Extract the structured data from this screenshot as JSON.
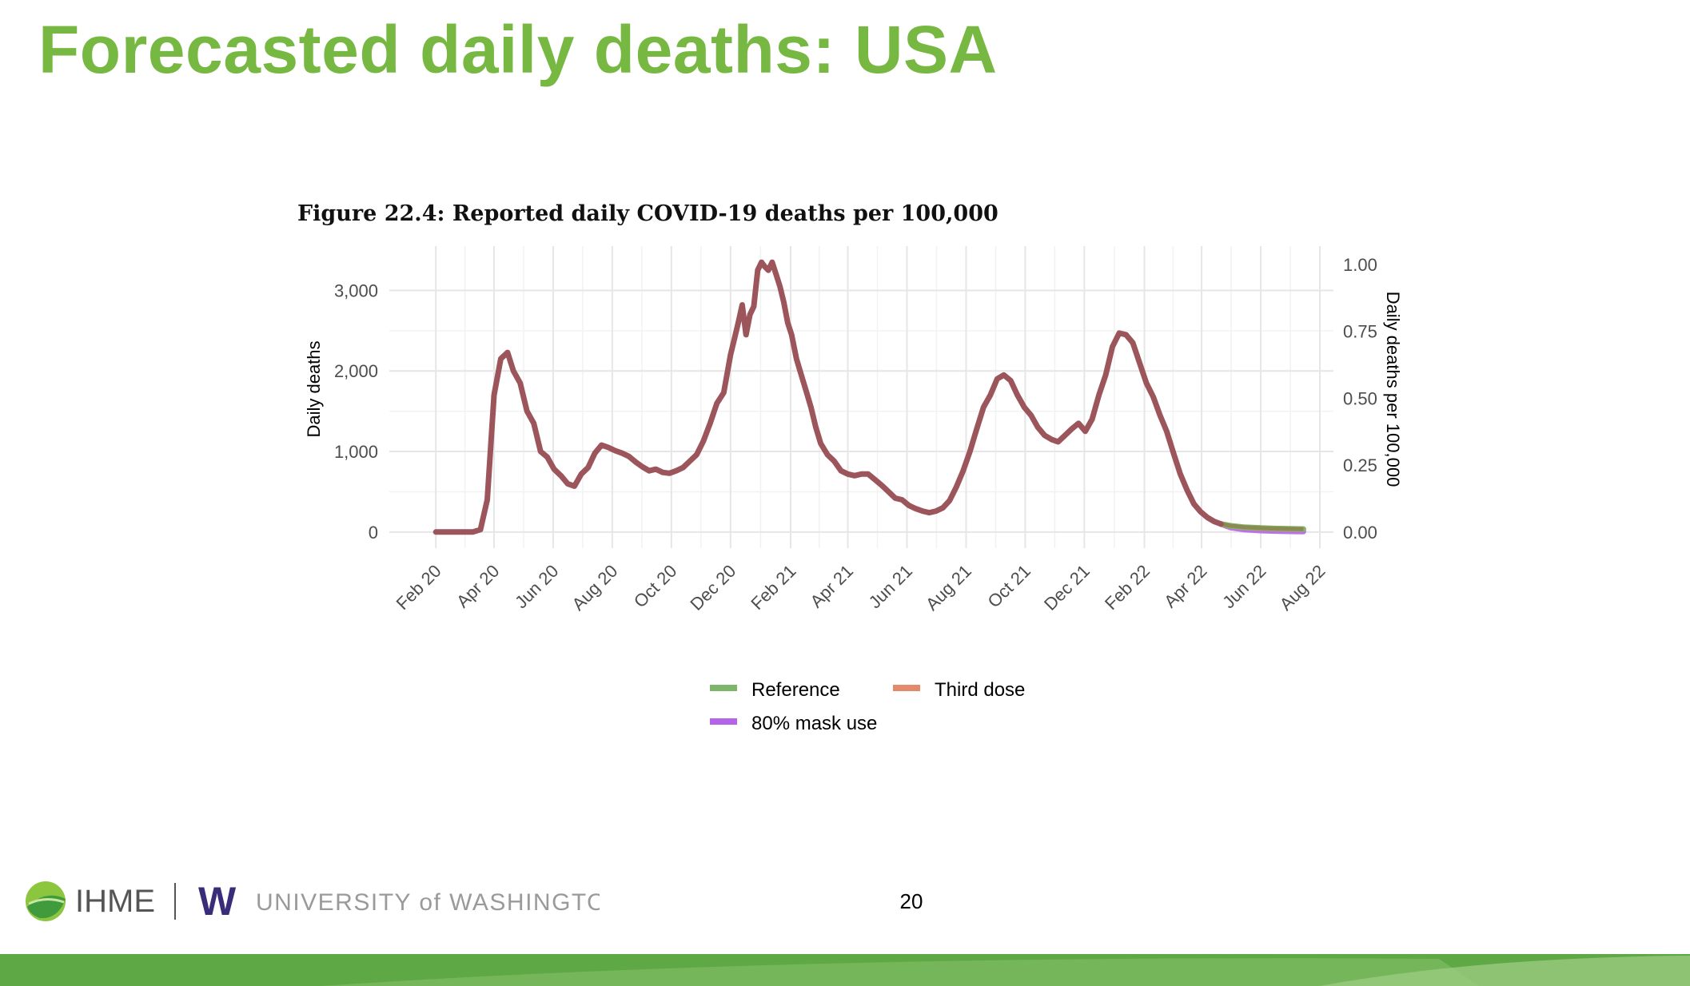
{
  "slide": {
    "title": "Forecasted daily deaths: USA",
    "page_number": "20",
    "colors": {
      "title": "#77b843",
      "band": "#5fa846",
      "band_light": "#86c06a"
    }
  },
  "footer": {
    "ihme_text": "IHME",
    "uw_text": "UNIVERSITY of WASHINGTON",
    "uw_logo": "W"
  },
  "chart_data": {
    "type": "line",
    "title": "Figure 22.4: Reported daily COVID-19 deaths per 100,000",
    "ylabel": "Daily deaths",
    "y2label": "Daily deaths per 100,000",
    "ylim": [
      -200,
      3550
    ],
    "y_ticks": [
      0,
      1000,
      2000,
      3000
    ],
    "y_tick_labels": [
      "0",
      "1,000",
      "2,000",
      "3,000"
    ],
    "y2_ticks": [
      0.0,
      0.25,
      0.5,
      0.75,
      1.0
    ],
    "y2_tick_labels": [
      "0.00",
      "0.25",
      "0.50",
      "0.75",
      "1.00"
    ],
    "y2_scale": 0.000301,
    "xlim": [
      "2019-12-15",
      "2022-08-15"
    ],
    "x_ticks": [
      "2020-02-01",
      "2020-04-01",
      "2020-06-01",
      "2020-08-01",
      "2020-10-01",
      "2020-12-01",
      "2021-02-01",
      "2021-04-01",
      "2021-06-01",
      "2021-08-01",
      "2021-10-01",
      "2021-12-01",
      "2022-02-01",
      "2022-04-01",
      "2022-06-01",
      "2022-08-01"
    ],
    "x_tick_labels": [
      "Feb 20",
      "Apr 20",
      "Jun 20",
      "Aug 20",
      "Oct 20",
      "Dec 20",
      "Feb 21",
      "Apr 21",
      "Jun 21",
      "Aug 21",
      "Oct 21",
      "Dec 21",
      "Feb 22",
      "Apr 22",
      "Jun 22",
      "Aug 22"
    ],
    "grid": true,
    "legend_position": "bottom",
    "observed_color": "#9b555b",
    "observed": {
      "x": [
        "2020-02-01",
        "2020-03-01",
        "2020-03-10",
        "2020-03-18",
        "2020-03-25",
        "2020-04-01",
        "2020-04-08",
        "2020-04-15",
        "2020-04-21",
        "2020-04-28",
        "2020-05-05",
        "2020-05-12",
        "2020-05-19",
        "2020-05-26",
        "2020-06-02",
        "2020-06-09",
        "2020-06-16",
        "2020-06-23",
        "2020-06-30",
        "2020-07-07",
        "2020-07-14",
        "2020-07-21",
        "2020-07-28",
        "2020-08-04",
        "2020-08-11",
        "2020-08-18",
        "2020-08-25",
        "2020-09-01",
        "2020-09-08",
        "2020-09-15",
        "2020-09-22",
        "2020-09-29",
        "2020-10-06",
        "2020-10-13",
        "2020-10-20",
        "2020-10-27",
        "2020-11-03",
        "2020-11-10",
        "2020-11-17",
        "2020-11-24",
        "2020-12-01",
        "2020-12-05",
        "2020-12-09",
        "2020-12-13",
        "2020-12-17",
        "2020-12-21",
        "2020-12-25",
        "2020-12-29",
        "2021-01-02",
        "2021-01-05",
        "2021-01-09",
        "2021-01-13",
        "2021-01-17",
        "2021-01-21",
        "2021-01-25",
        "2021-01-29",
        "2021-02-02",
        "2021-02-07",
        "2021-02-12",
        "2021-02-17",
        "2021-02-22",
        "2021-02-27",
        "2021-03-04",
        "2021-03-11",
        "2021-03-18",
        "2021-03-25",
        "2021-04-01",
        "2021-04-08",
        "2021-04-15",
        "2021-04-22",
        "2021-04-29",
        "2021-05-06",
        "2021-05-13",
        "2021-05-20",
        "2021-05-27",
        "2021-06-03",
        "2021-06-10",
        "2021-06-17",
        "2021-06-24",
        "2021-07-01",
        "2021-07-08",
        "2021-07-15",
        "2021-07-22",
        "2021-07-29",
        "2021-08-05",
        "2021-08-12",
        "2021-08-19",
        "2021-08-26",
        "2021-09-02",
        "2021-09-09",
        "2021-09-16",
        "2021-09-23",
        "2021-09-30",
        "2021-10-07",
        "2021-10-14",
        "2021-10-21",
        "2021-10-28",
        "2021-11-04",
        "2021-11-11",
        "2021-11-18",
        "2021-11-25",
        "2021-12-02",
        "2021-12-09",
        "2021-12-16",
        "2021-12-23",
        "2021-12-30",
        "2022-01-06",
        "2022-01-13",
        "2022-01-20",
        "2022-01-27",
        "2022-02-03",
        "2022-02-10",
        "2022-02-17",
        "2022-02-24",
        "2022-03-03",
        "2022-03-10",
        "2022-03-17",
        "2022-03-24",
        "2022-03-31",
        "2022-04-07",
        "2022-04-14",
        "2022-04-21"
      ],
      "y": [
        0,
        0,
        0,
        30,
        400,
        1700,
        2150,
        2230,
        2000,
        1850,
        1500,
        1350,
        1000,
        930,
        780,
        700,
        600,
        570,
        720,
        800,
        980,
        1080,
        1050,
        1010,
        980,
        940,
        870,
        810,
        760,
        780,
        740,
        730,
        760,
        800,
        880,
        960,
        1130,
        1350,
        1600,
        1730,
        2200,
        2400,
        2600,
        2820,
        2450,
        2700,
        2800,
        3250,
        3350,
        3300,
        3250,
        3350,
        3200,
        3050,
        2850,
        2600,
        2450,
        2150,
        1950,
        1750,
        1550,
        1300,
        1100,
        960,
        880,
        760,
        720,
        700,
        720,
        720,
        650,
        580,
        500,
        420,
        400,
        330,
        290,
        260,
        240,
        260,
        300,
        390,
        560,
        760,
        1000,
        1280,
        1550,
        1700,
        1900,
        1950,
        1880,
        1700,
        1550,
        1450,
        1300,
        1200,
        1150,
        1120,
        1200,
        1280,
        1350,
        1250,
        1400,
        1700,
        1950,
        2300,
        2470,
        2450,
        2350,
        2100,
        1850,
        1680,
        1450,
        1250,
        980,
        720,
        520,
        350,
        250,
        180,
        130,
        100
      ]
    },
    "series": [
      {
        "name": "Reference",
        "color": "#7db66a",
        "x": [
          "2022-04-21",
          "2022-05-01",
          "2022-05-15",
          "2022-06-01",
          "2022-06-15",
          "2022-07-01",
          "2022-07-15"
        ],
        "values": [
          100,
          78,
          60,
          50,
          44,
          40,
          37
        ]
      },
      {
        "name": "Third dose",
        "color": "#e38a6a",
        "x": [
          "2022-04-21",
          "2022-05-01",
          "2022-05-15",
          "2022-06-01",
          "2022-06-15",
          "2022-07-01",
          "2022-07-15"
        ],
        "values": [
          100,
          76,
          58,
          48,
          42,
          38,
          35
        ]
      },
      {
        "name": "80% mask use",
        "color": "#b563e8",
        "x": [
          "2022-04-21",
          "2022-05-01",
          "2022-05-15",
          "2022-06-01",
          "2022-06-15",
          "2022-07-01",
          "2022-07-15"
        ],
        "values": [
          100,
          55,
          30,
          18,
          12,
          8,
          6
        ]
      }
    ]
  }
}
